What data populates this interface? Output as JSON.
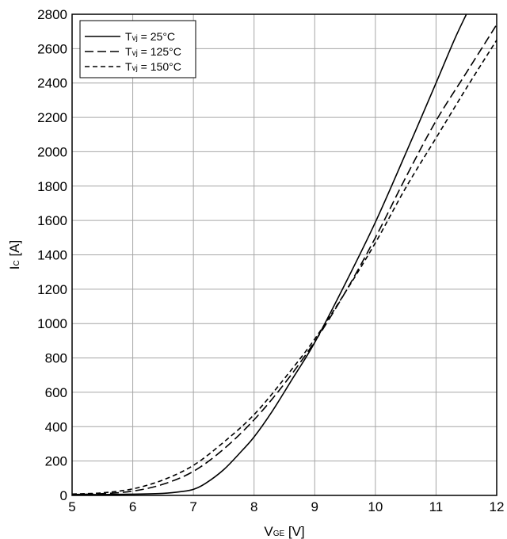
{
  "chart_data": {
    "type": "line",
    "xlabel": {
      "main": "V",
      "sub": "GE",
      "unit": " [V]"
    },
    "ylabel": {
      "main": "I",
      "sub": "C",
      "unit": " [A]"
    },
    "xlim": [
      5,
      12
    ],
    "ylim": [
      0,
      2800
    ],
    "xticks": [
      5,
      6,
      7,
      8,
      9,
      10,
      11,
      12
    ],
    "yticks": [
      0,
      200,
      400,
      600,
      800,
      1000,
      1200,
      1400,
      1600,
      1800,
      2000,
      2200,
      2400,
      2600,
      2800
    ],
    "grid": true,
    "legend_position": "top-left",
    "series": [
      {
        "name": "Tvj = 25°C",
        "label_main": "T",
        "label_sub": "vj",
        "label_rest": " = 25°C",
        "dash": "solid",
        "x": [
          5,
          5.5,
          6,
          6.5,
          6.8,
          7,
          7.2,
          7.5,
          7.8,
          8,
          8.3,
          8.6,
          9,
          9.5,
          10,
          10.5,
          11,
          11.3,
          11.5
        ],
        "y": [
          5,
          5,
          7,
          12,
          22,
          35,
          70,
          150,
          260,
          340,
          490,
          660,
          890,
          1230,
          1590,
          1990,
          2400,
          2650,
          2800
        ]
      },
      {
        "name": "Tvj = 125°C",
        "label_main": "T",
        "label_sub": "vj",
        "label_rest": " = 125°C",
        "dash": "longdash",
        "x": [
          5,
          5.5,
          6,
          6.5,
          7,
          7.5,
          8,
          8.5,
          9,
          9.5,
          10,
          10.5,
          11,
          11.5,
          12
        ],
        "y": [
          5,
          10,
          25,
          65,
          140,
          270,
          440,
          650,
          895,
          1180,
          1500,
          1850,
          2180,
          2460,
          2740
        ]
      },
      {
        "name": "Tvj = 150°C",
        "label_main": "T",
        "label_sub": "vj",
        "label_rest": " = 150°C",
        "dash": "shortdash",
        "x": [
          5,
          5.5,
          6,
          6.5,
          7,
          7.5,
          8,
          8.5,
          9,
          9.5,
          10,
          10.5,
          11,
          11.5,
          12
        ],
        "y": [
          8,
          15,
          38,
          90,
          175,
          310,
          470,
          680,
          910,
          1180,
          1470,
          1790,
          2080,
          2370,
          2650
        ]
      }
    ]
  }
}
